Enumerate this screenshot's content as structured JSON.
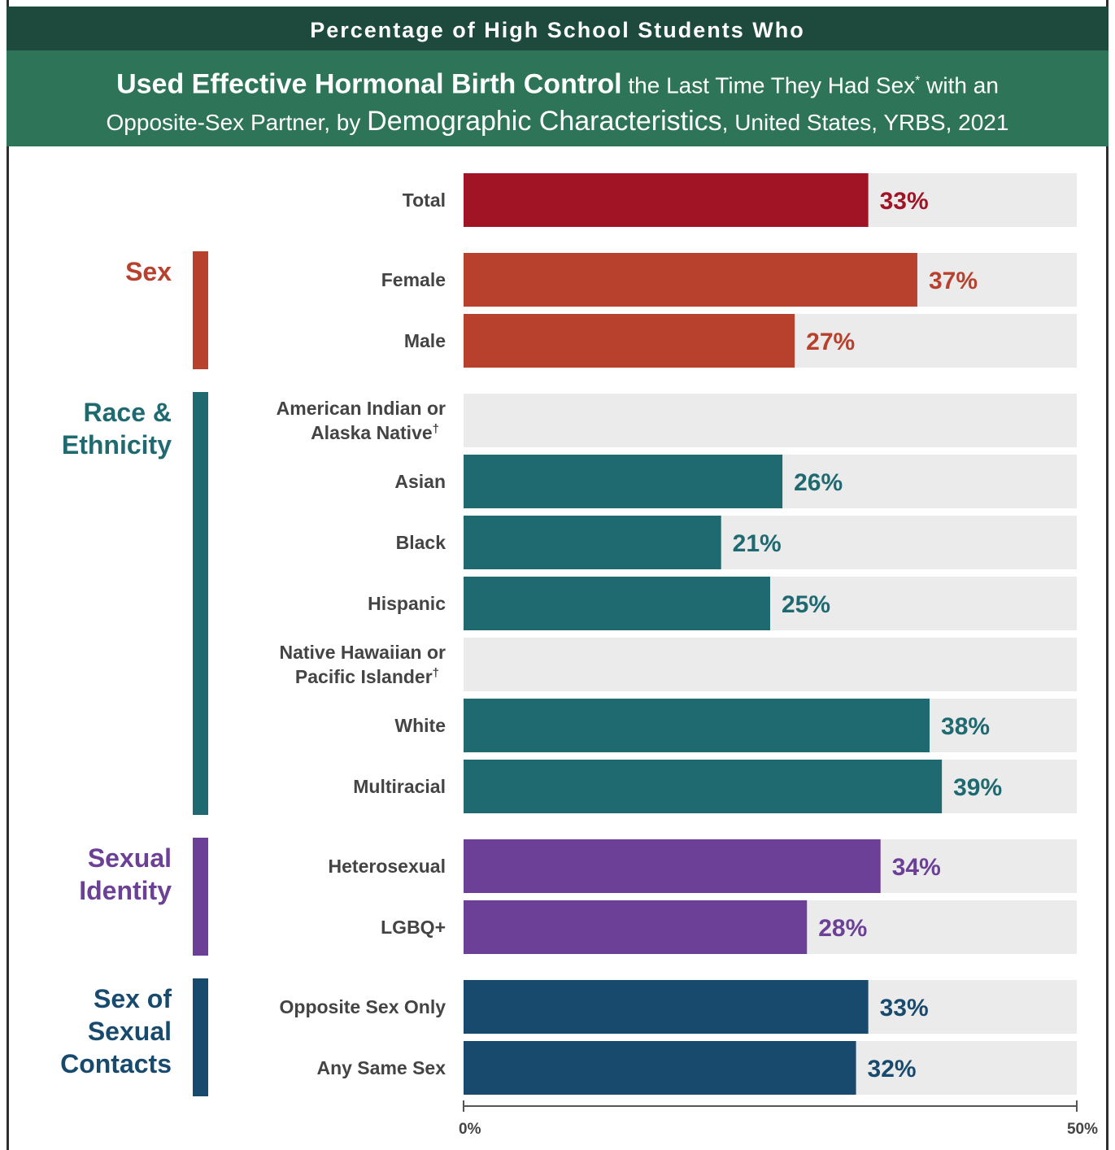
{
  "header": {
    "line1": "Percentage of High School Students Who",
    "title_bold": "Used Effective Hormonal Birth Control",
    "title_part2": " the Last Time They Had Sex",
    "title_sup": "*",
    "title_part3": " with an",
    "title_part4": "Opposite-Sex Partner, by ",
    "title_mid": "Demographic Characteristics",
    "title_part5": ", United States, YRBS, 2021"
  },
  "chart_data": {
    "type": "bar",
    "orientation": "horizontal",
    "xlim": [
      0,
      50
    ],
    "x_ticks": [
      "0%",
      "50%"
    ],
    "colors": {
      "total": "#a01426",
      "sex": "#b8412e",
      "race": "#1e6a70",
      "identity": "#6b4096",
      "contacts": "#184a6e",
      "track": "#ecebeb"
    },
    "groups": [
      {
        "key": "total",
        "label": "",
        "items": [
          {
            "label": "Total",
            "value": 33,
            "text": "33%"
          }
        ]
      },
      {
        "key": "sex",
        "label": "Sex",
        "items": [
          {
            "label": "Female",
            "value": 37,
            "text": "37%"
          },
          {
            "label": "Male",
            "value": 27,
            "text": "27%"
          }
        ]
      },
      {
        "key": "race",
        "label": "Race & Ethnicity",
        "items": [
          {
            "label": "American Indian or Alaska Native",
            "sup": "†",
            "value": null,
            "text": ""
          },
          {
            "label": "Asian",
            "value": 26,
            "text": "26%"
          },
          {
            "label": "Black",
            "value": 21,
            "text": "21%"
          },
          {
            "label": "Hispanic",
            "value": 25,
            "text": "25%"
          },
          {
            "label": "Native Hawaiian or Pacific Islander",
            "sup": "†",
            "value": null,
            "text": ""
          },
          {
            "label": "White",
            "value": 38,
            "text": "38%"
          },
          {
            "label": "Multiracial",
            "value": 39,
            "text": "39%"
          }
        ]
      },
      {
        "key": "identity",
        "label": "Sexual Identity",
        "items": [
          {
            "label": "Heterosexual",
            "value": 34,
            "text": "34%"
          },
          {
            "label": "LGBQ+",
            "value": 28,
            "text": "28%"
          }
        ]
      },
      {
        "key": "contacts",
        "label": "Sex of Sexual Contacts",
        "items": [
          {
            "label": "Opposite Sex Only",
            "value": 33,
            "text": "33%"
          },
          {
            "label": "Any Same Sex",
            "value": 32,
            "text": "32%"
          }
        ]
      }
    ]
  }
}
